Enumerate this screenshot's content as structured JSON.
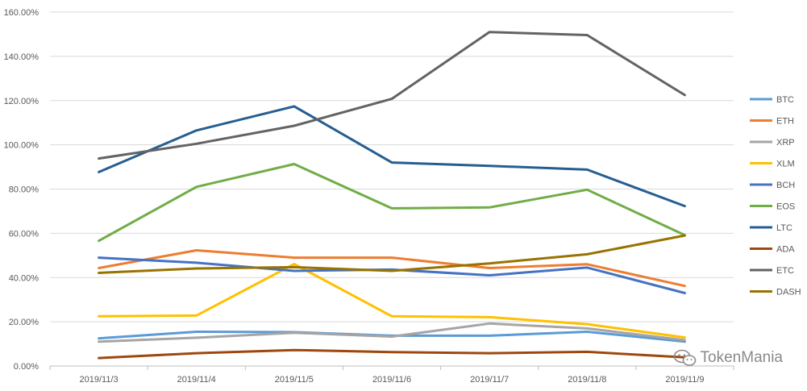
{
  "chart_data": {
    "type": "line",
    "categories": [
      "2019/11/3",
      "2019/11/4",
      "2019/11/5",
      "2019/11/6",
      "2019/11/7",
      "2019/11/8",
      "2019/11/9"
    ],
    "ylim": [
      0,
      160
    ],
    "yticks": [
      0,
      20,
      40,
      60,
      80,
      100,
      120,
      140,
      160
    ],
    "ytick_labels": [
      "0.00%",
      "20.00%",
      "40.00%",
      "60.00%",
      "80.00%",
      "100.00%",
      "120.00%",
      "140.00%",
      "160.00%"
    ],
    "grid": true,
    "legend_position": "right",
    "series": [
      {
        "name": "BTC",
        "color": "#5b9bd5",
        "values": [
          12.5,
          15.5,
          15.3,
          13.7,
          13.7,
          15.5,
          11
        ]
      },
      {
        "name": "ETH",
        "color": "#ed7d31",
        "values": [
          44.3,
          52.3,
          49,
          49,
          44.3,
          46,
          36.2
        ]
      },
      {
        "name": "XRP",
        "color": "#a5a5a5",
        "values": [
          11,
          12.8,
          15,
          13.3,
          19.2,
          17,
          11.7
        ]
      },
      {
        "name": "XLM",
        "color": "#ffc000",
        "values": [
          22.5,
          22.8,
          46.1,
          22.5,
          22.1,
          18.9,
          12.9
        ]
      },
      {
        "name": "BCH",
        "color": "#4472c4",
        "values": [
          49,
          46.7,
          43,
          43.6,
          41,
          44.5,
          33
        ]
      },
      {
        "name": "EOS",
        "color": "#70ad47",
        "values": [
          56.6,
          81,
          91.3,
          71.3,
          71.7,
          79.7,
          59.2
        ]
      },
      {
        "name": "LTC",
        "color": "#255e91",
        "values": [
          87.7,
          106.5,
          117.4,
          92,
          90.5,
          88.8,
          72.3
        ]
      },
      {
        "name": "ADA",
        "color": "#9e480e",
        "values": [
          3.6,
          5.8,
          7.2,
          6.3,
          5.8,
          6.4,
          3.9
        ]
      },
      {
        "name": "ETC",
        "color": "#636363",
        "values": [
          93.8,
          100.5,
          108.6,
          120.8,
          151,
          149.6,
          122.5
        ]
      },
      {
        "name": "DASH",
        "color": "#997300",
        "values": [
          42.1,
          44.1,
          44.7,
          43,
          46.4,
          50.5,
          59
        ]
      }
    ]
  },
  "watermark": {
    "text": "TokenMania",
    "icon": "wechat-icon"
  }
}
